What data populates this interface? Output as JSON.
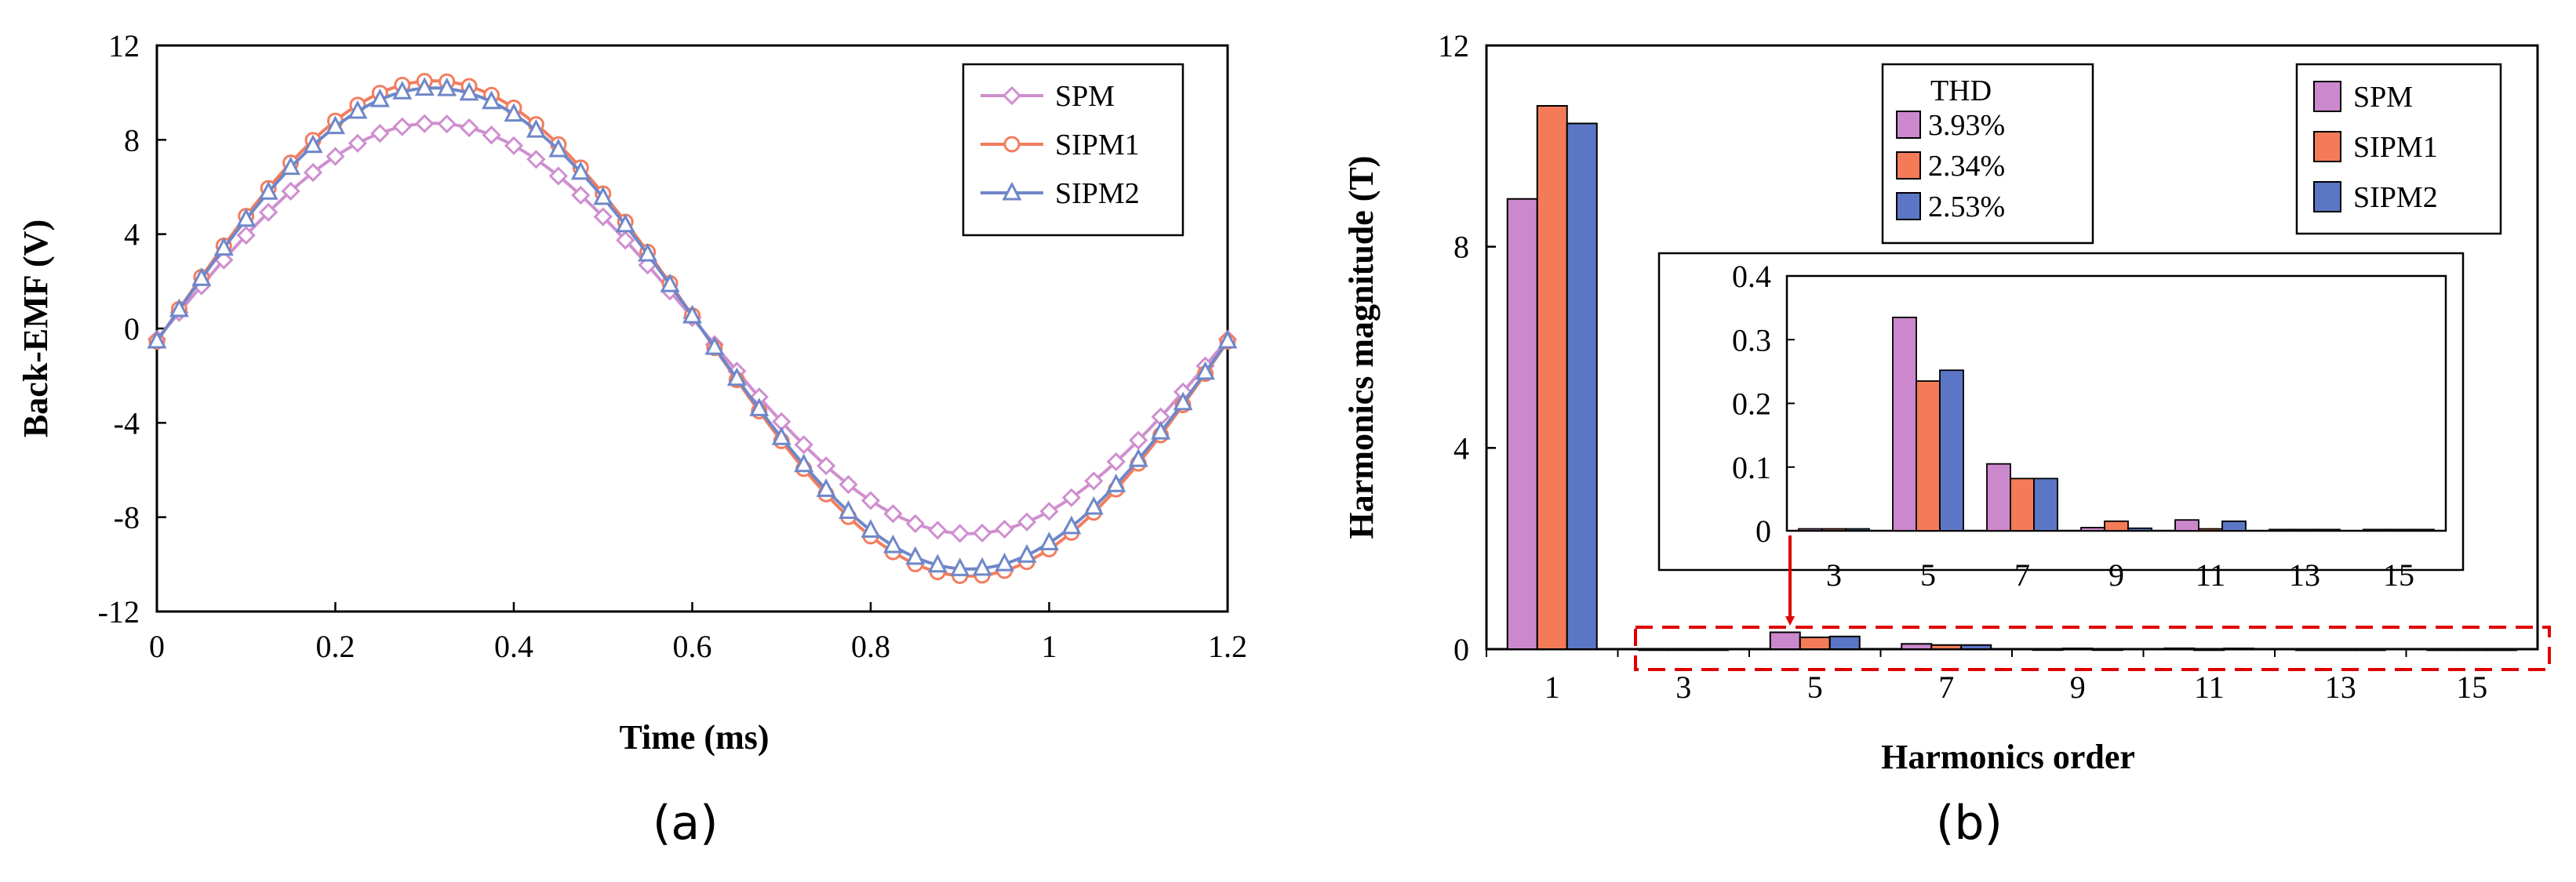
{
  "chart_data": [
    {
      "type": "line",
      "panel": "(a)",
      "xlabel": "Time (ms)",
      "ylabel": "Back-EMF (V)",
      "xlim": [
        0,
        1.2
      ],
      "ylim": [
        -12,
        12
      ],
      "xticks": [
        "0",
        "0.2",
        "0.4",
        "0.6",
        "0.8",
        "1",
        "1.2"
      ],
      "yticks": [
        "12",
        "8",
        "4",
        "0",
        "-4",
        "-8",
        "-12"
      ],
      "legend_position": "top-right",
      "series": [
        {
          "name": "SPM",
          "color": "#cf8fcf",
          "marker": "diamond",
          "amplitude": 8.7,
          "phase_zero_ms": 0.01,
          "period_ms": 1.2,
          "offset": 0
        },
        {
          "name": "SIPM1",
          "color": "#f27d5e",
          "marker": "circle",
          "amplitude": 10.5,
          "phase_zero_ms": 0.01,
          "period_ms": 1.2,
          "offset": 0
        },
        {
          "name": "SIPM2",
          "color": "#6f87c9",
          "marker": "triangle",
          "amplitude": 10.2,
          "phase_zero_ms": 0.01,
          "period_ms": 1.2,
          "offset": 0
        }
      ],
      "sample_step_ms": 0.025
    },
    {
      "type": "bar",
      "panel": "(b)",
      "xlabel": "Harmonics order",
      "ylabel": "Harmonics magnitude (T)",
      "ylim": [
        0,
        12
      ],
      "yticks": [
        "12",
        "8",
        "4",
        "0"
      ],
      "categories": [
        "1",
        "3",
        "5",
        "7",
        "9",
        "11",
        "13",
        "15"
      ],
      "series": [
        {
          "name": "SPM",
          "color": "#cc88cc",
          "values": [
            8.95,
            0.003,
            0.335,
            0.105,
            0.005,
            0.017,
            0.002,
            0.002
          ]
        },
        {
          "name": "SIPM1",
          "color": "#f47b58",
          "values": [
            10.8,
            0.003,
            0.235,
            0.082,
            0.015,
            0.003,
            0.002,
            0.002
          ]
        },
        {
          "name": "SIPM2",
          "color": "#5b76c4",
          "values": [
            10.45,
            0.003,
            0.252,
            0.082,
            0.004,
            0.015,
            0.002,
            0.002
          ]
        }
      ],
      "legend_position": "top-right",
      "thd": {
        "title": "THD",
        "values": [
          "3.93%",
          "2.34%",
          "2.53%"
        ]
      },
      "inset": {
        "categories": [
          "3",
          "5",
          "7",
          "9",
          "11",
          "13",
          "15"
        ],
        "ylim": [
          0,
          0.4
        ],
        "yticks": [
          "0.4",
          "0.3",
          "0.2",
          "0.1",
          "0"
        ]
      }
    }
  ],
  "captions": {
    "a": "(a)",
    "b": "(b)"
  }
}
